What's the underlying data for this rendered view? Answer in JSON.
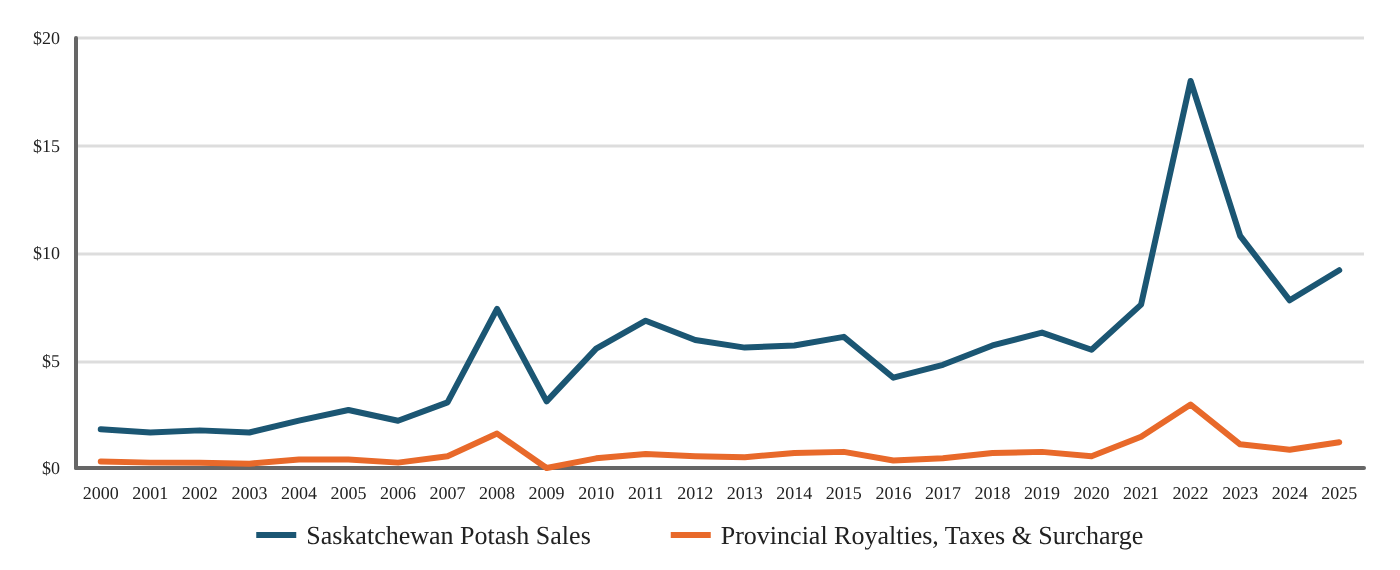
{
  "chart_data": {
    "type": "line",
    "categories": [
      "2000",
      "2001",
      "2002",
      "2003",
      "2004",
      "2005",
      "2006",
      "2007",
      "2008",
      "2009",
      "2010",
      "2011",
      "2012",
      "2013",
      "2014",
      "2015",
      "2016",
      "2017",
      "2018",
      "2019",
      "2020",
      "2021",
      "2022",
      "2023",
      "2024",
      "2025"
    ],
    "series": [
      {
        "name": "Saskatchewan Potash Sales",
        "color": "#1b5673",
        "values": [
          1.8,
          1.65,
          1.75,
          1.65,
          2.2,
          2.7,
          2.2,
          3.05,
          7.4,
          3.1,
          5.55,
          6.85,
          5.95,
          5.6,
          5.7,
          6.1,
          4.2,
          4.8,
          5.7,
          6.3,
          5.5,
          7.6,
          18.0,
          10.8,
          7.8,
          9.2
        ]
      },
      {
        "name": "Provincial Royalties, Taxes & Surcharge",
        "color": "#e8692a",
        "values": [
          0.3,
          0.25,
          0.25,
          0.2,
          0.4,
          0.4,
          0.25,
          0.55,
          1.6,
          0.0,
          0.45,
          0.65,
          0.55,
          0.5,
          0.7,
          0.75,
          0.35,
          0.45,
          0.7,
          0.75,
          0.55,
          1.45,
          2.95,
          1.1,
          0.85,
          1.2
        ]
      }
    ],
    "ylim": [
      0,
      20
    ],
    "yticks": [
      {
        "value": 0,
        "label": "$0"
      },
      {
        "value": 5,
        "label": "$5"
      },
      {
        "value": 10,
        "label": "$10"
      },
      {
        "value": 15,
        "label": "$15"
      },
      {
        "value": 20,
        "label": "$20"
      }
    ],
    "grid": "y",
    "legend": "bottom",
    "marker": "none",
    "line_style": "solid"
  }
}
